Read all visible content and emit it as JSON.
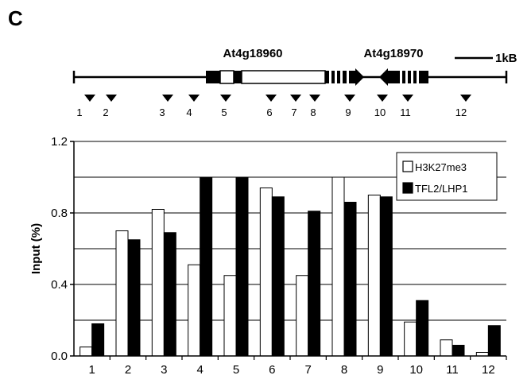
{
  "panel_letter": "C",
  "gene_map": {
    "genes": [
      "At4g18960",
      "At4g18970"
    ],
    "scale_label": "1kB",
    "sites": [
      "1",
      "2",
      "3",
      "4",
      "5",
      "6",
      "7",
      "8",
      "9",
      "10",
      "11",
      "12"
    ]
  },
  "chart_data": {
    "type": "bar",
    "title": "",
    "xlabel": "",
    "ylabel": "Input (%)",
    "categories": [
      "1",
      "2",
      "3",
      "4",
      "5",
      "6",
      "7",
      "8",
      "9",
      "10",
      "11",
      "12"
    ],
    "ylim": [
      0,
      1.2
    ],
    "yticks": [
      "0.0",
      "0.4",
      "0.8",
      "1.2"
    ],
    "grid": true,
    "legend_position": "top-right",
    "series": [
      {
        "name": "H3K27me3",
        "color": "#ffffff",
        "values": [
          0.05,
          0.7,
          0.82,
          0.51,
          0.45,
          0.94,
          0.45,
          1.0,
          0.9,
          0.19,
          0.09,
          0.02
        ]
      },
      {
        "name": "TFL2/LHP1",
        "color": "#000000",
        "values": [
          0.18,
          0.65,
          0.69,
          1.0,
          1.0,
          0.89,
          0.81,
          0.86,
          0.89,
          0.31,
          0.06,
          0.17
        ]
      }
    ]
  }
}
